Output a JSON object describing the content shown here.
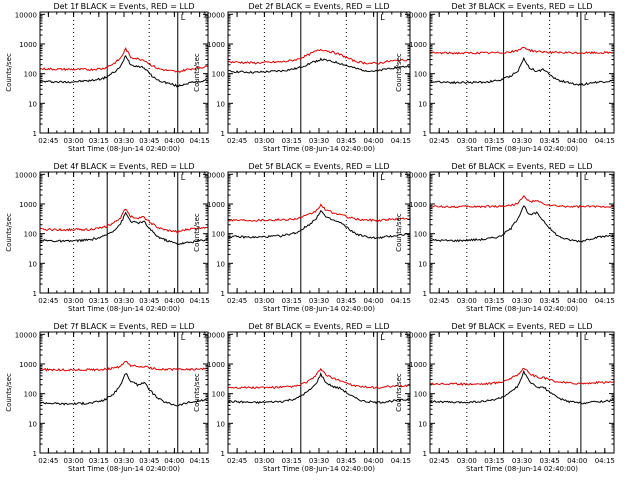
{
  "chart_data": [
    {
      "type": "line",
      "title": "Det 1f BLACK = Events, RED = LLD",
      "xlabel": "Start Time (08-Jun-14 02:40:00)",
      "ylabel": "Counts/sec",
      "yscale": "log",
      "ylim": [
        1,
        12000
      ],
      "xlim": [
        "02:40",
        "04:20"
      ],
      "x_ticks": [
        "02:45",
        "03:00",
        "03:15",
        "03:30",
        "03:45",
        "04:00",
        "04:15"
      ],
      "y_ticks": [
        "1",
        "10",
        "100",
        "1000",
        "10000"
      ],
      "corner_label": "L",
      "dotted_vlines": [
        "03:00",
        "03:45"
      ],
      "solid_vlines": [
        "03:20",
        "04:02"
      ],
      "series": [
        {
          "color": "#000000",
          "x": [
            "02:40",
            "02:55",
            "03:10",
            "03:18",
            "03:24",
            "03:28",
            "03:31",
            "03:34",
            "03:38",
            "03:42",
            "03:46",
            "03:50",
            "03:55",
            "04:02",
            "04:08",
            "04:20"
          ],
          "values": [
            55,
            52,
            58,
            70,
            110,
            170,
            420,
            200,
            180,
            160,
            90,
            60,
            50,
            38,
            48,
            60
          ]
        },
        {
          "color": "#dd0000",
          "x": [
            "02:40",
            "02:55",
            "03:10",
            "03:18",
            "03:24",
            "03:28",
            "03:31",
            "03:34",
            "03:38",
            "03:42",
            "03:46",
            "03:50",
            "03:55",
            "04:02",
            "04:08",
            "04:20"
          ],
          "values": [
            145,
            140,
            138,
            150,
            220,
            330,
            700,
            360,
            320,
            290,
            200,
            150,
            130,
            115,
            140,
            175
          ]
        }
      ]
    },
    {
      "type": "line",
      "title": "Det 2f BLACK = Events, RED = LLD",
      "xlabel": "Start Time (08-Jun-14 02:40:00)",
      "ylabel": "Counts/sec",
      "yscale": "log",
      "ylim": [
        1,
        12000
      ],
      "xlim": [
        "02:40",
        "04:20"
      ],
      "x_ticks": [
        "02:45",
        "03:00",
        "03:15",
        "03:30",
        "03:45",
        "04:00",
        "04:15"
      ],
      "y_ticks": [
        "1",
        "10",
        "100",
        "1000",
        "10000"
      ],
      "corner_label": "L",
      "dotted_vlines": [
        "03:00",
        "03:45"
      ],
      "solid_vlines": [
        "03:20",
        "04:02"
      ],
      "series": [
        {
          "color": "#000000",
          "x": [
            "02:40",
            "02:55",
            "03:10",
            "03:18",
            "03:24",
            "03:28",
            "03:31",
            "03:34",
            "03:38",
            "03:42",
            "03:46",
            "03:50",
            "03:55",
            "04:02",
            "04:08",
            "04:20"
          ],
          "values": [
            120,
            110,
            125,
            150,
            210,
            260,
            300,
            280,
            250,
            220,
            180,
            150,
            130,
            120,
            150,
            180
          ]
        },
        {
          "color": "#dd0000",
          "x": [
            "02:40",
            "02:55",
            "03:10",
            "03:18",
            "03:24",
            "03:28",
            "03:31",
            "03:34",
            "03:38",
            "03:42",
            "03:46",
            "03:50",
            "03:55",
            "04:02",
            "04:08",
            "04:20"
          ],
          "values": [
            250,
            230,
            250,
            300,
            430,
            560,
            650,
            600,
            520,
            430,
            330,
            260,
            230,
            220,
            260,
            300
          ]
        }
      ]
    },
    {
      "type": "line",
      "title": "Det 3f BLACK = Events, RED = LLD",
      "xlabel": "Start Time (08-Jun-14 02:40:00)",
      "ylabel": "Counts/sec",
      "yscale": "log",
      "ylim": [
        1,
        12000
      ],
      "xlim": [
        "02:40",
        "04:20"
      ],
      "x_ticks": [
        "02:45",
        "03:00",
        "03:15",
        "03:30",
        "03:45",
        "04:00",
        "04:15"
      ],
      "y_ticks": [
        "1",
        "10",
        "100",
        "1000",
        "10000"
      ],
      "corner_label": "L",
      "dotted_vlines": [
        "03:00",
        "03:45"
      ],
      "solid_vlines": [
        "03:20",
        "04:02"
      ],
      "series": [
        {
          "color": "#000000",
          "x": [
            "02:40",
            "02:55",
            "03:10",
            "03:18",
            "03:24",
            "03:28",
            "03:31",
            "03:34",
            "03:38",
            "03:42",
            "03:46",
            "03:50",
            "03:55",
            "04:02",
            "04:08",
            "04:20"
          ],
          "values": [
            55,
            50,
            52,
            60,
            85,
            130,
            320,
            160,
            120,
            140,
            80,
            60,
            50,
            42,
            50,
            58
          ]
        },
        {
          "color": "#dd0000",
          "x": [
            "02:40",
            "02:55",
            "03:10",
            "03:18",
            "03:24",
            "03:28",
            "03:31",
            "03:34",
            "03:38",
            "03:42",
            "03:46",
            "03:50",
            "03:55",
            "04:02",
            "04:08",
            "04:20"
          ],
          "values": [
            500,
            495,
            500,
            510,
            540,
            600,
            800,
            620,
            560,
            545,
            520,
            510,
            505,
            500,
            505,
            510
          ]
        }
      ]
    },
    {
      "type": "line",
      "title": "Det 4f BLACK = Events, RED = LLD",
      "xlabel": "Start Time (08-Jun-14 02:40:00)",
      "ylabel": "Counts/sec",
      "yscale": "log",
      "ylim": [
        1,
        12000
      ],
      "xlim": [
        "02:40",
        "04:20"
      ],
      "x_ticks": [
        "02:45",
        "03:00",
        "03:15",
        "03:30",
        "03:45",
        "04:00",
        "04:15"
      ],
      "y_ticks": [
        "1",
        "10",
        "100",
        "1000",
        "10000"
      ],
      "corner_label": "L",
      "dotted_vlines": [
        "03:00",
        "03:45"
      ],
      "solid_vlines": [
        "03:20",
        "04:02"
      ],
      "series": [
        {
          "color": "#000000",
          "x": [
            "02:40",
            "02:55",
            "03:10",
            "03:18",
            "03:24",
            "03:28",
            "03:31",
            "03:34",
            "03:38",
            "03:42",
            "03:46",
            "03:50",
            "03:55",
            "04:02",
            "04:08",
            "04:20"
          ],
          "values": [
            60,
            55,
            62,
            80,
            130,
            220,
            500,
            260,
            230,
            250,
            130,
            80,
            60,
            45,
            50,
            65
          ]
        },
        {
          "color": "#dd0000",
          "x": [
            "02:40",
            "02:55",
            "03:10",
            "03:18",
            "03:24",
            "03:28",
            "03:31",
            "03:34",
            "03:38",
            "03:42",
            "03:46",
            "03:50",
            "03:55",
            "04:02",
            "04:08",
            "04:20"
          ],
          "values": [
            140,
            135,
            140,
            160,
            230,
            350,
            700,
            380,
            340,
            360,
            230,
            160,
            130,
            115,
            140,
            170
          ]
        }
      ]
    },
    {
      "type": "line",
      "title": "Det 5f BLACK = Events, RED = LLD",
      "xlabel": "Start Time (08-Jun-14 02:40:00)",
      "ylabel": "Counts/sec",
      "yscale": "log",
      "ylim": [
        1,
        12000
      ],
      "xlim": [
        "02:40",
        "04:20"
      ],
      "x_ticks": [
        "02:45",
        "03:00",
        "03:15",
        "03:30",
        "03:45",
        "04:00",
        "04:15"
      ],
      "y_ticks": [
        "1",
        "10",
        "100",
        "1000",
        "10000"
      ],
      "corner_label": "L",
      "dotted_vlines": [
        "03:00",
        "03:45"
      ],
      "solid_vlines": [
        "03:20",
        "04:02"
      ],
      "series": [
        {
          "color": "#000000",
          "x": [
            "02:40",
            "02:55",
            "03:10",
            "03:18",
            "03:24",
            "03:28",
            "03:31",
            "03:34",
            "03:38",
            "03:42",
            "03:46",
            "03:50",
            "03:55",
            "04:02",
            "04:08",
            "04:20"
          ],
          "values": [
            80,
            75,
            85,
            110,
            190,
            300,
            600,
            350,
            280,
            230,
            150,
            100,
            80,
            70,
            80,
            100
          ]
        },
        {
          "color": "#dd0000",
          "x": [
            "02:40",
            "02:55",
            "03:10",
            "03:18",
            "03:24",
            "03:28",
            "03:31",
            "03:34",
            "03:38",
            "03:42",
            "03:46",
            "03:50",
            "03:55",
            "04:02",
            "04:08",
            "04:20"
          ],
          "values": [
            290,
            285,
            295,
            320,
            420,
            560,
            900,
            620,
            500,
            440,
            360,
            310,
            290,
            280,
            300,
            330
          ]
        }
      ]
    },
    {
      "type": "line",
      "title": "Det 6f BLACK = Events, RED = LLD",
      "xlabel": "Start Time (08-Jun-14 02:40:00)",
      "ylabel": "Counts/sec",
      "yscale": "log",
      "ylim": [
        1,
        12000
      ],
      "xlim": [
        "02:40",
        "04:20"
      ],
      "x_ticks": [
        "02:45",
        "03:00",
        "03:15",
        "03:30",
        "03:45",
        "04:00",
        "04:15"
      ],
      "y_ticks": [
        "1",
        "10",
        "100",
        "1000",
        "10000"
      ],
      "corner_label": "L",
      "dotted_vlines": [
        "03:00",
        "03:45"
      ],
      "solid_vlines": [
        "03:20",
        "04:02"
      ],
      "series": [
        {
          "color": "#000000",
          "x": [
            "02:40",
            "02:55",
            "03:10",
            "03:18",
            "03:24",
            "03:28",
            "03:31",
            "03:34",
            "03:38",
            "03:42",
            "03:46",
            "03:50",
            "03:55",
            "04:02",
            "04:08",
            "04:20"
          ],
          "values": [
            60,
            58,
            65,
            80,
            150,
            350,
            900,
            420,
            500,
            260,
            130,
            80,
            62,
            55,
            70,
            90
          ]
        },
        {
          "color": "#dd0000",
          "x": [
            "02:40",
            "02:55",
            "03:10",
            "03:18",
            "03:24",
            "03:28",
            "03:31",
            "03:34",
            "03:38",
            "03:42",
            "03:46",
            "03:50",
            "03:55",
            "04:02",
            "04:08",
            "04:20"
          ],
          "values": [
            820,
            810,
            820,
            840,
            900,
            1100,
            1800,
            1200,
            1250,
            1000,
            880,
            840,
            820,
            810,
            820,
            830
          ]
        }
      ]
    },
    {
      "type": "line",
      "title": "Det 7f BLACK = Events, RED = LLD",
      "xlabel": "Start Time (08-Jun-14 02:40:00)",
      "ylabel": "Counts/sec",
      "yscale": "log",
      "ylim": [
        1,
        12000
      ],
      "xlim": [
        "02:40",
        "04:20"
      ],
      "x_ticks": [
        "02:45",
        "03:00",
        "03:15",
        "03:30",
        "03:45",
        "04:00",
        "04:15"
      ],
      "y_ticks": [
        "1",
        "10",
        "100",
        "1000",
        "10000"
      ],
      "corner_label": "L",
      "dotted_vlines": [
        "03:00",
        "03:45"
      ],
      "solid_vlines": [
        "03:20",
        "04:02"
      ],
      "series": [
        {
          "color": "#000000",
          "x": [
            "02:40",
            "02:55",
            "03:10",
            "03:18",
            "03:24",
            "03:28",
            "03:31",
            "03:34",
            "03:38",
            "03:42",
            "03:46",
            "03:50",
            "03:55",
            "04:02",
            "04:08",
            "04:20"
          ],
          "values": [
            50,
            45,
            48,
            60,
            100,
            200,
            500,
            260,
            200,
            240,
            120,
            70,
            50,
            40,
            50,
            62
          ]
        },
        {
          "color": "#dd0000",
          "x": [
            "02:40",
            "02:55",
            "03:10",
            "03:18",
            "03:24",
            "03:28",
            "03:31",
            "03:34",
            "03:38",
            "03:42",
            "03:46",
            "03:50",
            "03:55",
            "04:02",
            "04:08",
            "04:20"
          ],
          "values": [
            650,
            630,
            640,
            660,
            720,
            850,
            1200,
            900,
            800,
            820,
            720,
            680,
            660,
            650,
            660,
            680
          ]
        }
      ]
    },
    {
      "type": "line",
      "title": "Det 8f BLACK = Events, RED = LLD",
      "xlabel": "Start Time (08-Jun-14 02:40:00)",
      "ylabel": "Counts/sec",
      "yscale": "log",
      "ylim": [
        1,
        12000
      ],
      "xlim": [
        "02:40",
        "04:20"
      ],
      "x_ticks": [
        "02:45",
        "03:00",
        "03:15",
        "03:30",
        "03:45",
        "04:00",
        "04:15"
      ],
      "y_ticks": [
        "1",
        "10",
        "100",
        "1000",
        "10000"
      ],
      "corner_label": "L",
      "dotted_vlines": [
        "03:00",
        "03:45"
      ],
      "solid_vlines": [
        "03:20",
        "04:02"
      ],
      "series": [
        {
          "color": "#000000",
          "x": [
            "02:40",
            "02:55",
            "03:10",
            "03:18",
            "03:24",
            "03:28",
            "03:31",
            "03:34",
            "03:38",
            "03:42",
            "03:46",
            "03:50",
            "03:55",
            "04:02",
            "04:08",
            "04:20"
          ],
          "values": [
            55,
            50,
            55,
            70,
            120,
            200,
            450,
            230,
            170,
            150,
            100,
            70,
            55,
            50,
            55,
            65
          ]
        },
        {
          "color": "#dd0000",
          "x": [
            "02:40",
            "02:55",
            "03:10",
            "03:18",
            "03:24",
            "03:28",
            "03:31",
            "03:34",
            "03:38",
            "03:42",
            "03:46",
            "03:50",
            "03:55",
            "04:02",
            "04:08",
            "04:20"
          ],
          "values": [
            165,
            160,
            165,
            180,
            260,
            380,
            700,
            420,
            320,
            280,
            220,
            180,
            165,
            160,
            170,
            190
          ]
        }
      ]
    },
    {
      "type": "line",
      "title": "Det 9f BLACK = Events, RED = LLD",
      "xlabel": "Start Time (08-Jun-14 02:40:00)",
      "ylabel": "Counts/sec",
      "yscale": "log",
      "ylim": [
        1,
        12000
      ],
      "xlim": [
        "02:40",
        "04:20"
      ],
      "x_ticks": [
        "02:45",
        "03:00",
        "03:15",
        "03:30",
        "03:45",
        "04:00",
        "04:15"
      ],
      "y_ticks": [
        "1",
        "10",
        "100",
        "1000",
        "10000"
      ],
      "corner_label": "L",
      "dotted_vlines": [
        "03:00",
        "03:45"
      ],
      "solid_vlines": [
        "03:20",
        "04:02"
      ],
      "series": [
        {
          "color": "#000000",
          "x": [
            "02:40",
            "02:55",
            "03:10",
            "03:18",
            "03:24",
            "03:28",
            "03:31",
            "03:34",
            "03:38",
            "03:42",
            "03:46",
            "03:50",
            "03:55",
            "04:02",
            "04:08",
            "04:20"
          ],
          "values": [
            55,
            50,
            55,
            70,
            110,
            190,
            550,
            250,
            170,
            160,
            100,
            70,
            55,
            48,
            52,
            60
          ]
        },
        {
          "color": "#dd0000",
          "x": [
            "02:40",
            "02:55",
            "03:10",
            "03:18",
            "03:24",
            "03:28",
            "03:31",
            "03:34",
            "03:38",
            "03:42",
            "03:46",
            "03:50",
            "03:55",
            "04:02",
            "04:08",
            "04:20"
          ],
          "values": [
            220,
            210,
            215,
            240,
            330,
            450,
            750,
            480,
            360,
            340,
            280,
            250,
            230,
            220,
            230,
            250
          ]
        }
      ]
    }
  ]
}
